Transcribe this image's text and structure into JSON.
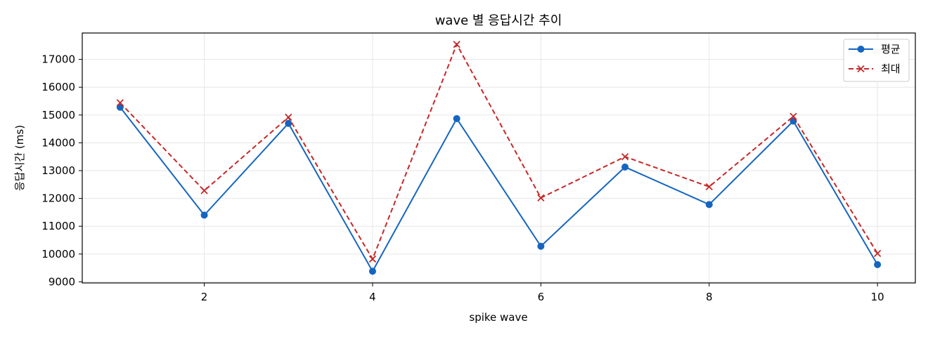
{
  "chart_data": {
    "type": "line",
    "title": "wave 별 응답시간 추이",
    "xlabel": "spike wave",
    "ylabel": "응답시간 (ms)",
    "x": [
      1,
      2,
      3,
      4,
      5,
      6,
      7,
      8,
      9,
      10
    ],
    "xlim": [
      0.55,
      10.45
    ],
    "ylim": [
      8960,
      17950
    ],
    "x_ticks": [
      2,
      4,
      6,
      8,
      10
    ],
    "y_ticks": [
      9000,
      10000,
      11000,
      12000,
      13000,
      14000,
      15000,
      16000,
      17000
    ],
    "grid": true,
    "legend_position": "top-right",
    "series": [
      {
        "name": "평균",
        "color": "#1565c0",
        "line_style": "solid",
        "marker": "circle",
        "values": [
          15280,
          11400,
          14700,
          9380,
          14870,
          10280,
          13130,
          11780,
          14780,
          9620
        ]
      },
      {
        "name": "최대",
        "color": "#c62828",
        "line_style": "dashed",
        "marker": "x",
        "values": [
          15440,
          12280,
          14920,
          9820,
          17540,
          12020,
          13500,
          12420,
          14950,
          10020
        ]
      }
    ]
  }
}
